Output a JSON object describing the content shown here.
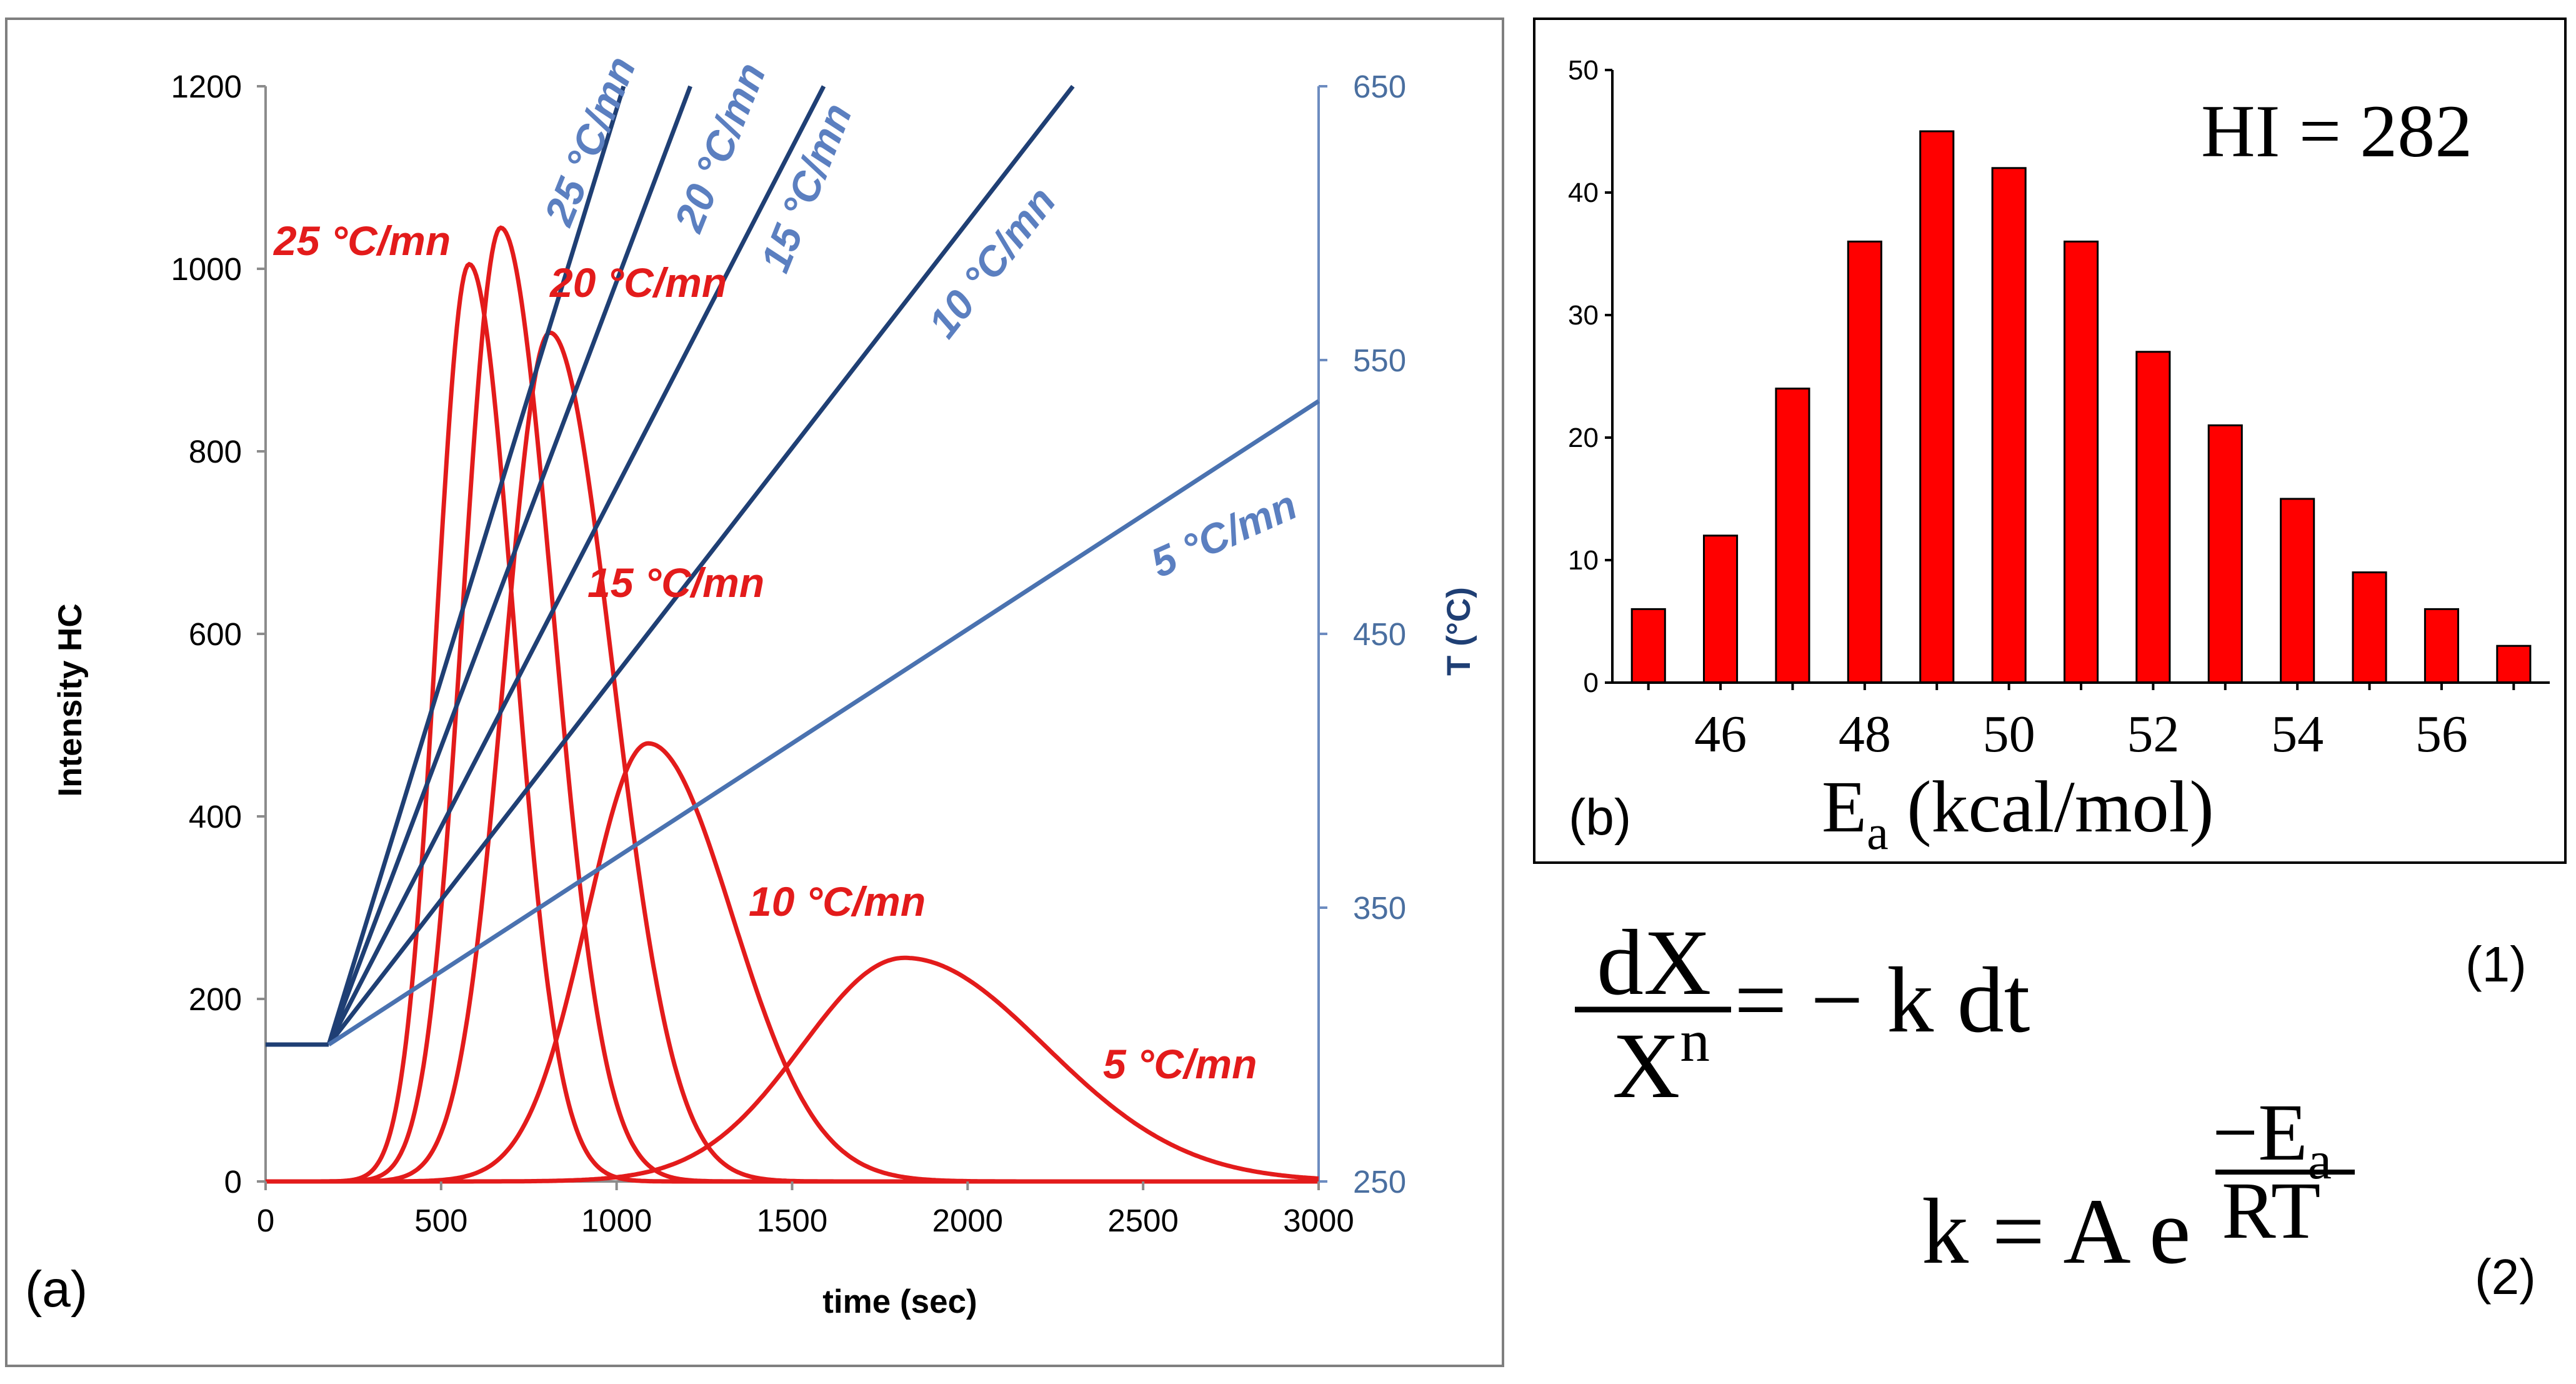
{
  "chart_data": [
    {
      "panel_label": "(a)",
      "type": "line",
      "xlabel": "time (sec)",
      "ylabel": "Intensity HC",
      "y2label": "T (°C)",
      "xlim": [
        0,
        3000
      ],
      "ylim": [
        0,
        1200
      ],
      "y2lim": [
        250,
        650
      ],
      "xticks": [
        "0",
        "500",
        "1000",
        "1500",
        "2000",
        "2500",
        "3000"
      ],
      "yticks": [
        "0",
        "200",
        "400",
        "600",
        "800",
        "1000",
        "1200"
      ],
      "y2ticks": [
        "250",
        "350",
        "450",
        "550",
        "650"
      ],
      "intensity_series": [
        {
          "name": "25 °C/mn",
          "peak_time": 580,
          "peak_intensity": 1005,
          "label": "25 °C/mn"
        },
        {
          "name": "20 °C/mn",
          "peak_time": 670,
          "peak_intensity": 1045,
          "label": "20 °C/mn"
        },
        {
          "name": "15 °C/mn",
          "peak_time": 810,
          "peak_intensity": 930,
          "label": "15 °C/mn"
        },
        {
          "name": "10 °C/mn",
          "peak_time": 1090,
          "peak_intensity": 480,
          "label": "10 °C/mn"
        },
        {
          "name": "5 °C/mn",
          "peak_time": 1820,
          "peak_intensity": 245,
          "label": "5 °C/mn"
        }
      ],
      "temperature_series": [
        {
          "name": "25 °C/mn",
          "start": [
            180,
            300
          ],
          "end": [
            1020,
            650
          ],
          "label": "25 °C/mn"
        },
        {
          "name": "20 °C/mn",
          "start": [
            180,
            300
          ],
          "end": [
            1210,
            650
          ],
          "label": "20 °C/mn"
        },
        {
          "name": "15 °C/mn",
          "start": [
            180,
            300
          ],
          "end": [
            1590,
            650
          ],
          "label": "15 °C/mn"
        },
        {
          "name": "10 °C/mn",
          "start": [
            180,
            300
          ],
          "end": [
            2300,
            650
          ],
          "label": "10 °C/mn"
        },
        {
          "name": "5 °C/mn",
          "start": [
            180,
            300
          ],
          "end": [
            3000,
            535
          ],
          "label": "5 °C/mn"
        }
      ],
      "baseline_temperature": 300
    },
    {
      "panel_label": "(b)",
      "type": "bar",
      "annotation": "HI = 282",
      "xlabel_main": "E",
      "xlabel_sub": "a",
      "xlabel_rest": " (kcal/mol)",
      "ylim": [
        0,
        50
      ],
      "yticks": [
        "0",
        "10",
        "20",
        "30",
        "40",
        "50"
      ],
      "xtick_labels": [
        "46",
        "48",
        "50",
        "52",
        "54",
        "56"
      ],
      "categories": [
        45,
        46,
        47,
        48,
        49,
        50,
        51,
        52,
        53,
        54,
        55,
        56,
        57
      ],
      "values": [
        6,
        12,
        24,
        36,
        45,
        42,
        36,
        27,
        21,
        15,
        9,
        6,
        3
      ],
      "bar_color": "#ff0000"
    }
  ],
  "equations": {
    "eq1": {
      "numerator": "dX",
      "denominator": "X",
      "exponent": "n",
      "rhs": "= − k dt",
      "number": "(1)"
    },
    "eq2": {
      "lhs": "k = A e",
      "exp_num": "−E",
      "exp_num_sub": "a",
      "exp_den": "RT",
      "number": "(2)"
    }
  },
  "colors": {
    "red": "#e31b1b",
    "dark_blue": "#1f3f74",
    "light_blue": "#5b7fc0",
    "bar": "#ff0000"
  }
}
